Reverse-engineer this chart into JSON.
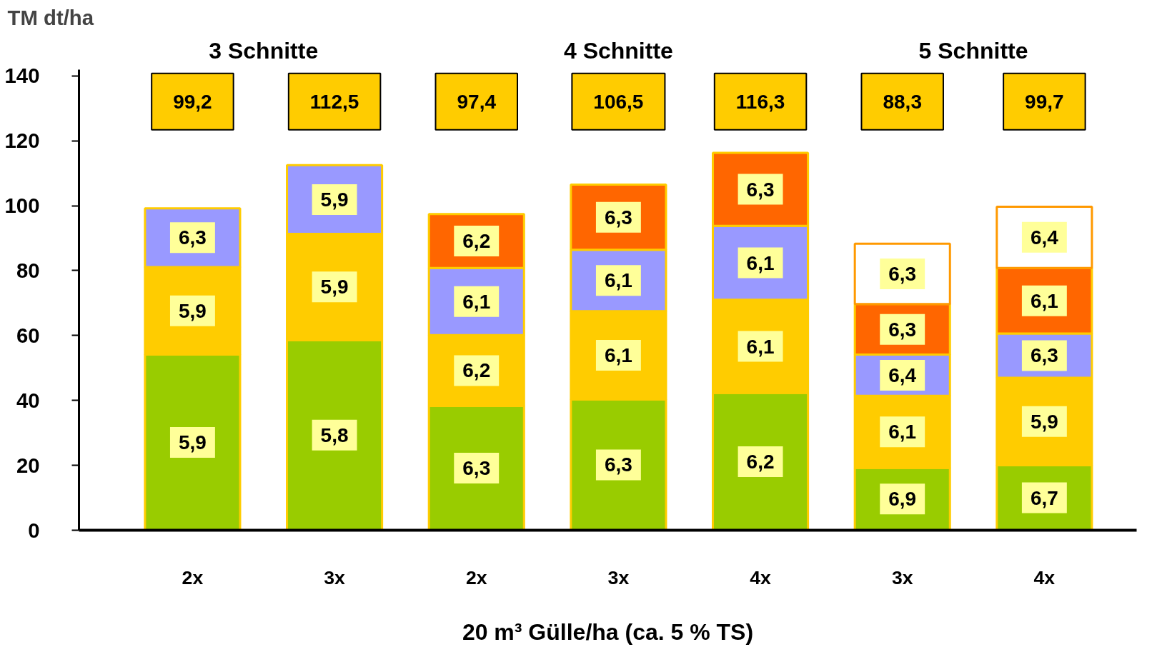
{
  "chart_data": {
    "type": "bar",
    "stacked": true,
    "ylabel": "TM dt/ha",
    "xlabel": "20 m³ Gülle/ha (ca. 5 % TS)",
    "categories": [
      "2x",
      "3x",
      "2x",
      "3x",
      "4x",
      "3x",
      "4x"
    ],
    "ylim": [
      0,
      142
    ],
    "yticks": [
      0,
      20,
      40,
      60,
      80,
      100,
      120,
      140
    ],
    "series": [
      {
        "color": "#99cc00",
        "values": [
          54.1,
          58.6,
          38.3,
          40.3,
          42.3,
          19.2,
          20.0
        ]
      },
      {
        "color": "#ffcc00",
        "values": [
          27.0,
          32.7,
          21.8,
          27.2,
          28.7,
          22.2,
          27.0
        ]
      },
      {
        "color": "#9999ff",
        "values": [
          18.1,
          21.2,
          20.7,
          18.9,
          22.8,
          12.7,
          13.6
        ]
      },
      {
        "color": "#ff6600",
        "values": [
          null,
          null,
          16.6,
          20.1,
          22.5,
          15.6,
          20.2
        ]
      },
      {
        "color": "#ffffff",
        "values": [
          null,
          null,
          null,
          null,
          null,
          18.6,
          18.9
        ]
      }
    ],
    "annotations": [
      "3 Schnitte",
      "4 Schnitte",
      "5 Schnitte",
      "99,2",
      "112,5",
      "97,4",
      "106,5",
      "116,3",
      "88,3",
      "99,7",
      "5,9",
      "5,9",
      "6,3",
      "5,8",
      "5,9",
      "5,9",
      "6,3",
      "6,2",
      "6,1",
      "6,2",
      "6,3",
      "6,1",
      "6,1",
      "6,3",
      "6,2",
      "6,1",
      "6,1",
      "6,3",
      "6,9",
      "6,1",
      "6,4",
      "6,3",
      "6,3",
      "6,7",
      "5,9",
      "6,3",
      "6,1",
      "6,4"
    ],
    "grid": false
  }
}
